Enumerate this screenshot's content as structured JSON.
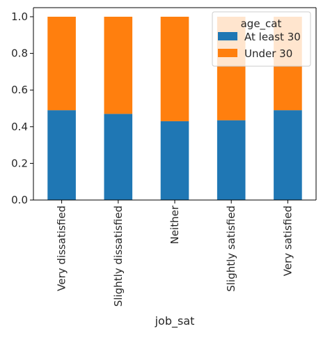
{
  "chart_data": {
    "type": "bar",
    "stacked": true,
    "categories": [
      "Very dissatisfied",
      "Slightly dissatisfied",
      "Neither",
      "Slightly satisfied",
      "Very satisfied"
    ],
    "series": [
      {
        "name": "At least 30",
        "values": [
          0.49,
          0.47,
          0.43,
          0.435,
          0.49
        ],
        "color": "#1f77b4"
      },
      {
        "name": "Under 30",
        "values": [
          0.51,
          0.53,
          0.57,
          0.565,
          0.51
        ],
        "color": "#ff7f0e"
      }
    ],
    "xlabel": "job_sat",
    "ylabel": "",
    "ylim": [
      0,
      1.0
    ],
    "yticks": [
      "0.0",
      "0.2",
      "0.4",
      "0.6",
      "0.8",
      "1.0"
    ],
    "legend": {
      "title": "age_cat",
      "position": "top-right"
    },
    "grid": false
  }
}
